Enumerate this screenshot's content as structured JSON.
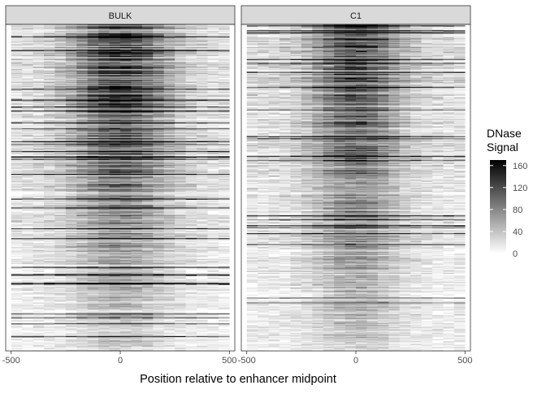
{
  "chart_data": {
    "type": "heatmap",
    "title": "",
    "xlabel": "Position relative to enhancer midpoint",
    "ylabel": "",
    "xlim": [
      -525,
      525
    ],
    "x_ticks": [
      -500,
      0,
      500
    ],
    "x_tick_labels": [
      "-500",
      "0",
      "500"
    ],
    "grid": false,
    "facets": [
      {
        "label": "BULK",
        "signal_center": 0,
        "signal_width": 160,
        "peak_strength": 0.85
      },
      {
        "label": "C1",
        "signal_center": 0,
        "signal_width": 140,
        "peak_strength": 0.78
      }
    ],
    "rows_per_facet": 330,
    "x_bin_edges": [
      -500,
      -450,
      -400,
      -350,
      -300,
      -250,
      -200,
      -150,
      -100,
      -50,
      0,
      50,
      100,
      150,
      200,
      250,
      300,
      350,
      400,
      450,
      500
    ],
    "colorbar": {
      "title": "DNase\nSignal",
      "title_lines": [
        "DNase",
        "Signal"
      ],
      "min": 0,
      "max": 170,
      "ticks": [
        0,
        40,
        80,
        120,
        160
      ],
      "tick_labels": [
        "0",
        "40",
        "80",
        "120",
        "160"
      ],
      "low_color": "#ffffff",
      "high_color": "#000000",
      "placement": "right"
    },
    "colors": {
      "strip_fill": "#d9d9d9",
      "panel_border": "#333333",
      "text": "#4d4d4d"
    }
  }
}
